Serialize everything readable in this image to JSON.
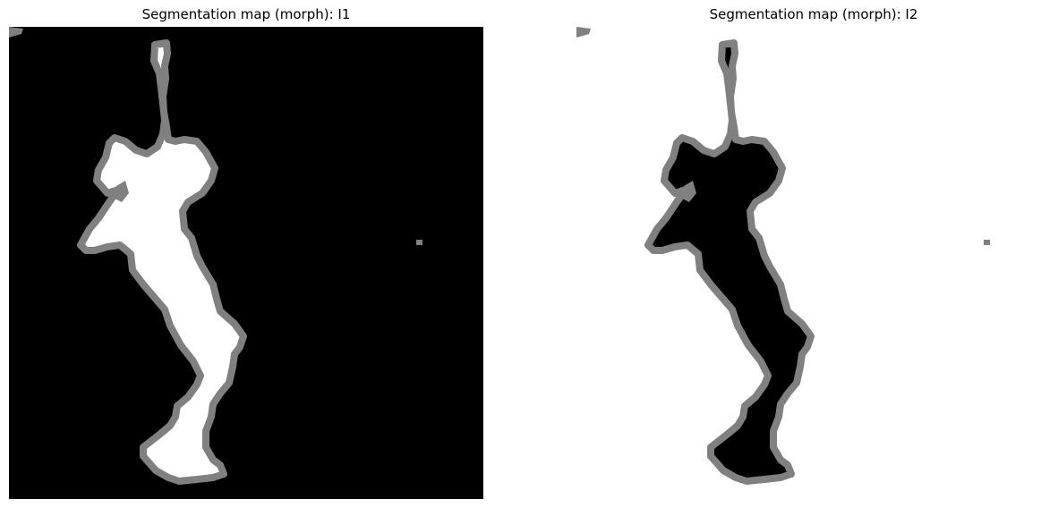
{
  "panels": [
    {
      "title": "Segmentation map (morph): I1",
      "colors": {
        "background": "#000000",
        "region": "#ffffff",
        "boundary": "#808080"
      }
    },
    {
      "title": "Segmentation map (morph): I2",
      "colors": {
        "background": "#ffffff",
        "region": "#000000",
        "boundary": "#808080"
      }
    }
  ]
}
